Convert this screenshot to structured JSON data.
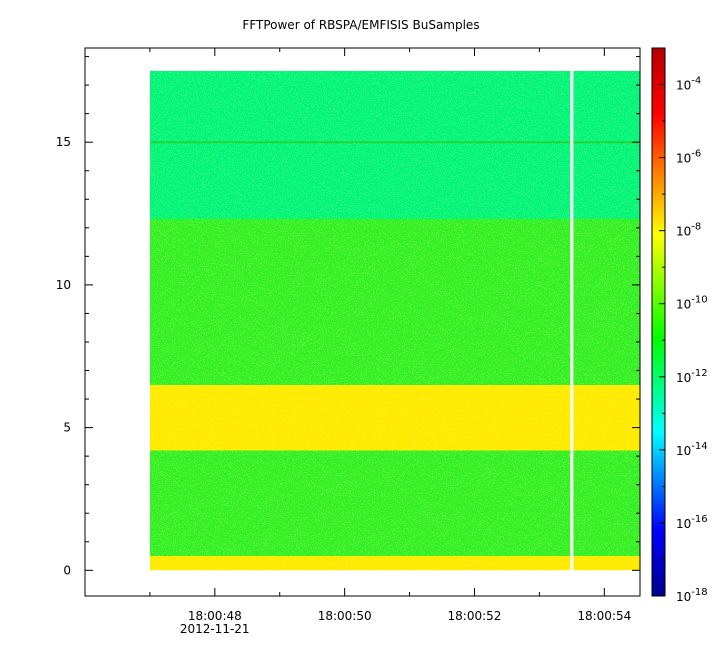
{
  "chart_data": {
    "type": "heatmap",
    "title": "FFTPower of RBSPA/EMFISIS  BuSamples",
    "xlabel": "",
    "ylabel": "",
    "x_tick_labels": [
      {
        "label": "18:00:48",
        "sub": "2012-11-21",
        "value": 48
      },
      {
        "label": "18:00:50",
        "value": 50
      },
      {
        "label": "18:00:52",
        "value": 52
      },
      {
        "label": "18:00:54",
        "value": 54
      }
    ],
    "x_minor_ticks": [
      47,
      49,
      51,
      53
    ],
    "xlim": [
      46.0,
      54.55
    ],
    "y_ticks": [
      0,
      5,
      10,
      15
    ],
    "ylim": [
      -0.9,
      18.3
    ],
    "colorbar": {
      "scale": "log",
      "range": [
        1e-18,
        0.001
      ],
      "tick_exponents": [
        -18,
        -16,
        -14,
        -12,
        -10,
        -8,
        -6,
        -4
      ],
      "tick_base": "10",
      "colors": [
        "#00008f",
        "#0000ff",
        "#00ffff",
        "#00ff00",
        "#ffff00",
        "#ff0000",
        "#b40000"
      ]
    },
    "data_extent": {
      "x_start": 47.0,
      "x_end": 54.55,
      "y_min": 0,
      "y_max": 17.5
    },
    "data_gap": {
      "x": 53.5
    },
    "power_profile": [
      {
        "y": [
          0.0,
          0.5
        ],
        "level": "yellow",
        "value": "1e-8"
      },
      {
        "y": [
          0.5,
          4.2
        ],
        "level": "green",
        "value": "1e-10"
      },
      {
        "y": [
          4.2,
          6.5
        ],
        "level": "yellow",
        "value": "1e-8"
      },
      {
        "y": [
          6.5,
          12.3
        ],
        "level": "green",
        "value": "1e-10"
      },
      {
        "y": [
          12.3,
          17.5
        ],
        "level": "green-cyan",
        "value": "1e-12"
      }
    ],
    "narrowband_line": {
      "y": 15.0
    }
  }
}
